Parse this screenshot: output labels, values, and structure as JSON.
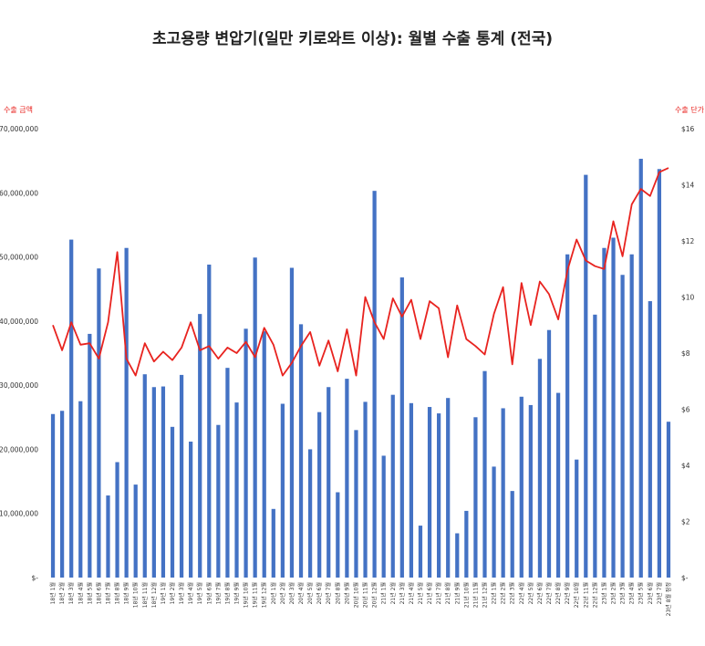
{
  "chart_data": {
    "type": "bar",
    "title": "초고용량 변압기(일만 키로와트 이상): 월별 수출 통계 (전국)",
    "ylabel": "수출 금액",
    "y2label": "수출 단가",
    "ylim": [
      0,
      70000000
    ],
    "y2lim": [
      0,
      16
    ],
    "ytick_labels": [
      "$-",
      "$10,000,000",
      "$20,000,000",
      "$30,000,000",
      "$40,000,000",
      "$50,000,000",
      "$60,000,000",
      "$70,000,000"
    ],
    "y2tick_labels": [
      "$-",
      "$2",
      "$4",
      "$6",
      "$8",
      "$10",
      "$12",
      "$14",
      "$16"
    ],
    "grid": false,
    "categories": [
      "18년 1월",
      "18년 2월",
      "18년 3월",
      "18년 4월",
      "18년 5월",
      "18년 6월",
      "18년 7월",
      "18년 8월",
      "18년 9월",
      "18년 10월",
      "18년 11월",
      "18년 12월",
      "19년 1월",
      "19년 2월",
      "19년 3월",
      "19년 4월",
      "19년 5월",
      "19년 6월",
      "19년 7월",
      "19년 8월",
      "19년 9월",
      "19년 10월",
      "19년 11월",
      "19년 12월",
      "20년 1월",
      "20년 2월",
      "20년 3월",
      "20년 4월",
      "20년 5월",
      "20년 6월",
      "20년 7월",
      "20년 8월",
      "20년 9월",
      "20년 10월",
      "20년 11월",
      "20년 12월",
      "21년 1월",
      "21년 2월",
      "21년 3월",
      "21년 4월",
      "21년 5월",
      "21년 6월",
      "21년 7월",
      "21년 8월",
      "21년 9월",
      "21년 10월",
      "21년 11월",
      "21년 12월",
      "22년 1월",
      "22년 2월",
      "22년 3월",
      "22년 4월",
      "22년 5월",
      "22년 6월",
      "22년 7월",
      "22년 8월",
      "22년 9월",
      "22년 10월",
      "22년 11월",
      "22년 12월",
      "23년 1월",
      "23년 2월",
      "23년 3월",
      "23년 4월",
      "23년 5월",
      "23년 6월",
      "23년 7월",
      "23년 8월 잠정"
    ],
    "series": [
      {
        "name": "수출 금액",
        "type": "bar",
        "axis": "left",
        "color": "#4472c4",
        "values": [
          25500000,
          26000000,
          52700000,
          27500000,
          38000000,
          48200000,
          12800000,
          18000000,
          51400000,
          14500000,
          31700000,
          29700000,
          29800000,
          23500000,
          31600000,
          21200000,
          41100000,
          48800000,
          23800000,
          32700000,
          27300000,
          38800000,
          49900000,
          38400000,
          10700000,
          27100000,
          48300000,
          39500000,
          20000000,
          25800000,
          29700000,
          13300000,
          31000000,
          23000000,
          27400000,
          60300000,
          19000000,
          28500000,
          46800000,
          27200000,
          8100000,
          26600000,
          25600000,
          28000000,
          6900000,
          10400000,
          25000000,
          32200000,
          17300000,
          26400000,
          13500000,
          28200000,
          26900000,
          34100000,
          38600000,
          28800000,
          50400000,
          18400000,
          62800000,
          41000000,
          51400000,
          53000000,
          47200000,
          50400000,
          65300000,
          43100000,
          63700000,
          24300000
        ]
      },
      {
        "name": "수출 단가",
        "type": "line",
        "axis": "right",
        "color": "#e8231f",
        "values": [
          9.0,
          8.1,
          9.1,
          8.3,
          8.35,
          7.8,
          9.1,
          11.6,
          7.8,
          7.2,
          8.35,
          7.7,
          8.05,
          7.75,
          8.2,
          9.1,
          8.1,
          8.25,
          7.8,
          8.2,
          8.0,
          8.4,
          7.85,
          8.9,
          8.3,
          7.2,
          7.65,
          8.25,
          8.75,
          7.55,
          8.45,
          7.35,
          8.85,
          7.2,
          10.0,
          9.1,
          8.5,
          9.95,
          9.3,
          9.9,
          8.5,
          9.85,
          9.6,
          7.85,
          9.7,
          8.5,
          8.25,
          7.95,
          9.4,
          10.35,
          7.6,
          10.5,
          9.0,
          10.55,
          10.1,
          9.2,
          10.95,
          12.05,
          11.3,
          11.1,
          11.0,
          12.7,
          11.45,
          13.3,
          13.85,
          13.6,
          14.45,
          14.6
        ]
      }
    ]
  }
}
